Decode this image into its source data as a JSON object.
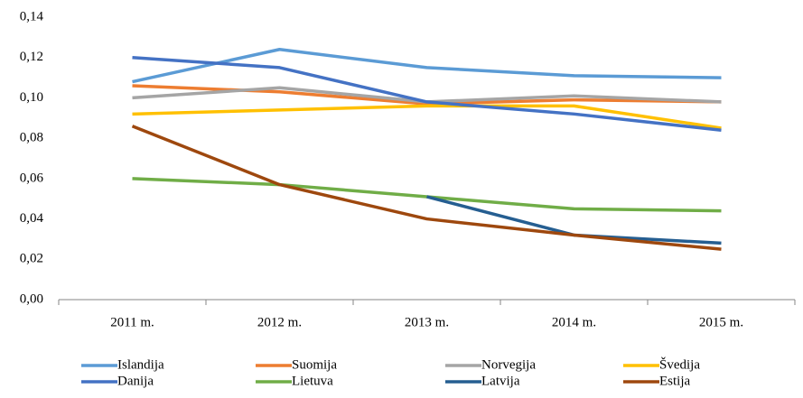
{
  "chart_data": {
    "type": "line",
    "categories": [
      "2011 m.",
      "2012 m.",
      "2013 m.",
      "2014 m.",
      "2015 m."
    ],
    "series": [
      {
        "name": "Islandija",
        "color": "#5b9bd5",
        "values": [
          0.108,
          0.124,
          0.115,
          0.111,
          0.11
        ]
      },
      {
        "name": "Suomija",
        "color": "#ed7d31",
        "values": [
          0.106,
          0.103,
          0.097,
          0.099,
          0.098
        ]
      },
      {
        "name": "Norvegija",
        "color": "#a5a5a5",
        "values": [
          0.1,
          0.105,
          0.098,
          0.101,
          0.098
        ]
      },
      {
        "name": "Švedija",
        "color": "#ffc000",
        "values": [
          0.092,
          0.094,
          0.096,
          0.096,
          0.085
        ]
      },
      {
        "name": "Danija",
        "color": "#4472c4",
        "values": [
          0.12,
          0.115,
          0.098,
          0.092,
          0.084
        ]
      },
      {
        "name": "Lietuva",
        "color": "#70ad47",
        "values": [
          0.06,
          0.057,
          0.051,
          0.045,
          0.044
        ]
      },
      {
        "name": "Latvija",
        "color": "#255e91",
        "values": [
          null,
          null,
          0.051,
          0.032,
          0.028
        ]
      },
      {
        "name": "Estija",
        "color": "#9e480e",
        "values": [
          0.086,
          0.057,
          0.04,
          0.032,
          0.025
        ]
      }
    ],
    "ylim": [
      0,
      0.14
    ],
    "yticks": [
      {
        "value": 0,
        "label": "0,00"
      },
      {
        "value": 0.02,
        "label": "0,02"
      },
      {
        "value": 0.04,
        "label": "0,04"
      },
      {
        "value": 0.06,
        "label": "0,06"
      },
      {
        "value": 0.08,
        "label": "0,08"
      },
      {
        "value": 0.1,
        "label": "0,10"
      },
      {
        "value": 0.12,
        "label": "0,12"
      },
      {
        "value": 0.14,
        "label": "0,14"
      }
    ],
    "grid": false,
    "legend": "bottom"
  }
}
